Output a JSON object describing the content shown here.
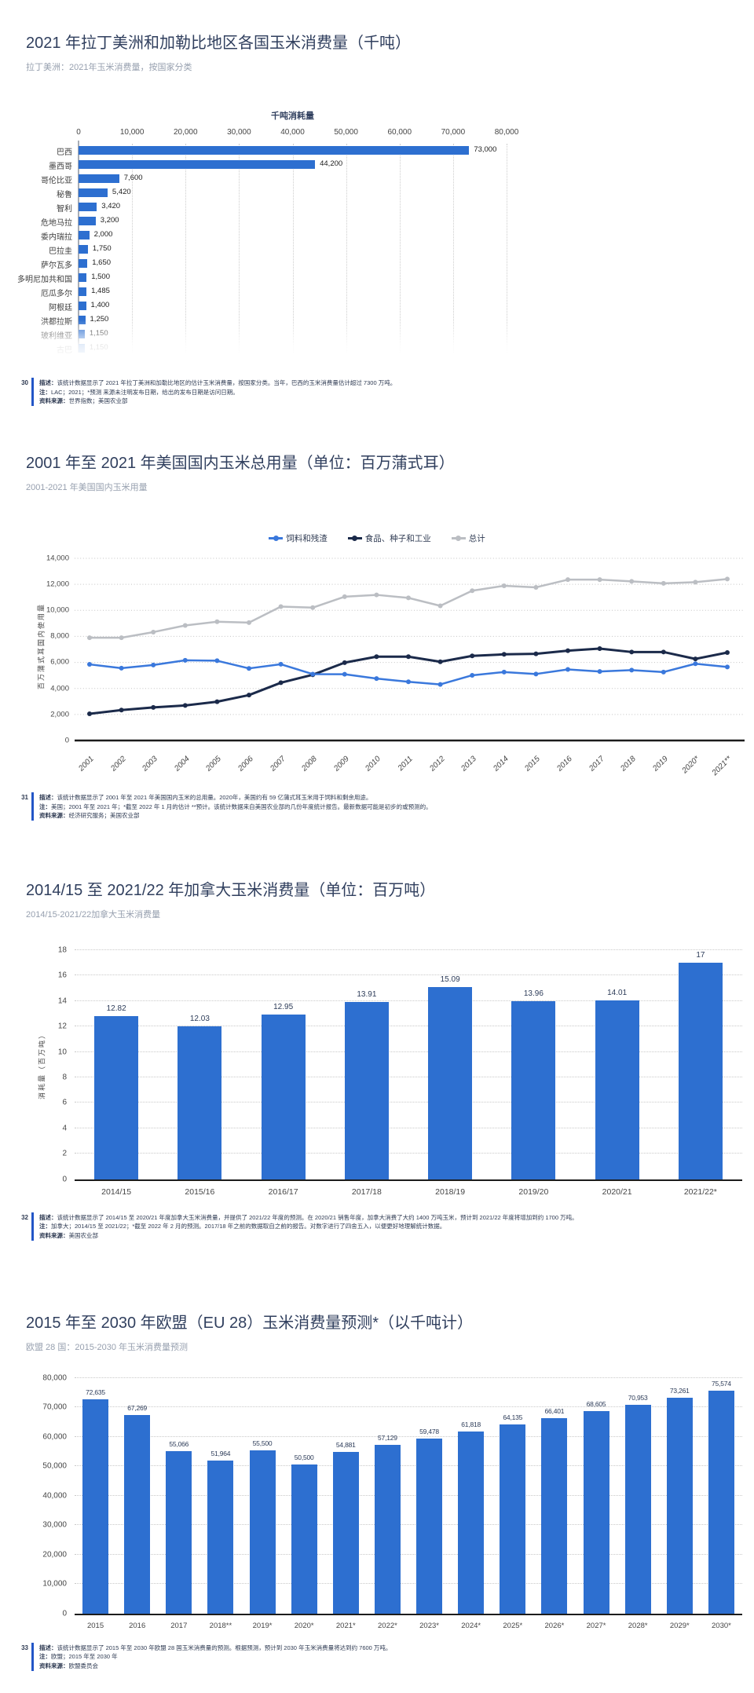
{
  "colors": {
    "bar_blue": "#2d6fd0",
    "title_navy": "#303f5e",
    "subtitle_gray": "#97a0af",
    "footnote_accent": "#2356c7",
    "line_blue": "#3a78dc",
    "line_dark": "#1b2a4a",
    "line_gray": "#bbbec3"
  },
  "chart_data": [
    {
      "id": "latam-corn-consumption-2021",
      "type": "bar-horizontal",
      "badge": "30",
      "title": "2021 年拉丁美洲和加勒比地区各国玉米消费量（千吨）",
      "subtitle": "拉丁美洲：2021年玉米消费量，按国家分类",
      "axis_title": "千吨消耗量",
      "xlim": [
        0,
        80000
      ],
      "xtick_labels": [
        "0",
        "10,000",
        "20,000",
        "30,000",
        "40,000",
        "50,000",
        "60,000",
        "70,000",
        "80,000"
      ],
      "categories": [
        "巴西",
        "墨西哥",
        "哥伦比亚",
        "秘鲁",
        "智利",
        "危地马拉",
        "委内瑞拉",
        "巴拉圭",
        "萨尔瓦多",
        "多明尼加共和国",
        "厄瓜多尔",
        "阿根廷",
        "洪都拉斯",
        "玻利维亚",
        "古巴"
      ],
      "values": [
        73000,
        44200,
        7600,
        5420,
        3420,
        3200,
        2000,
        1750,
        1650,
        1500,
        1485,
        1400,
        1250,
        1150,
        1150
      ],
      "value_labels": [
        "73,000",
        "44,200",
        "7,600",
        "5,420",
        "3,420",
        "3,200",
        "2,000",
        "1,750",
        "1,650",
        "1,500",
        "1,485",
        "1,400",
        "1,250",
        "1,150",
        "1,150"
      ],
      "footnote": {
        "desc_label": "描述：",
        "desc": "该统计数据显示了 2021 年拉丁美洲和加勒比地区的估计玉米消费量，按国家分类。当年，巴西的玉米消费量估计超过 7300 万吨。",
        "note_label": "注：",
        "note": "LAC；2021；*预测 来源未注明发布日期，给出的发布日期是访问日期。",
        "source_label": "资料来源：",
        "source": "世界指数；美国农业部"
      }
    },
    {
      "id": "us-domestic-corn-usage",
      "type": "line",
      "badge": "31",
      "title": "2001 年至 2021 年美国国内玉米总用量（单位：百万蒲式耳）",
      "subtitle": "2001-2021 年美国国内玉米用量",
      "ylabel": "百万蒲式耳国内使用量",
      "ylim": [
        0,
        14000
      ],
      "ytick_values": [
        0,
        2000,
        4000,
        6000,
        8000,
        10000,
        12000,
        14000
      ],
      "ytick_labels": [
        "0",
        "2,000",
        "4,000",
        "6,000",
        "8,000",
        "10,000",
        "12,000",
        "14,000"
      ],
      "x": [
        "2001",
        "2002",
        "2003",
        "2004",
        "2005",
        "2006",
        "2007",
        "2008",
        "2009",
        "2010",
        "2011",
        "2012",
        "2013",
        "2014",
        "2015",
        "2016",
        "2017",
        "2018",
        "2019",
        "2020*",
        "2021**"
      ],
      "series": [
        {
          "name": "饲料和残渣",
          "color": "#3a78dc",
          "values": [
            5850,
            5560,
            5800,
            6160,
            6130,
            5540,
            5860,
            5100,
            5090,
            4760,
            4510,
            4310,
            5010,
            5260,
            5110,
            5460,
            5300,
            5410,
            5260,
            5900,
            5650
          ]
        },
        {
          "name": "食品、种子和工业",
          "color": "#1b2a4a",
          "values": [
            2050,
            2340,
            2540,
            2690,
            2980,
            3490,
            4440,
            5050,
            5980,
            6440,
            6440,
            6050,
            6500,
            6620,
            6660,
            6900,
            7060,
            6800,
            6800,
            6270,
            6760
          ]
        },
        {
          "name": "总计",
          "color": "#bbbec3",
          "values": [
            7900,
            7900,
            8330,
            8840,
            9130,
            9060,
            10290,
            10210,
            11050,
            11190,
            10960,
            10350,
            11510,
            11890,
            11770,
            12360,
            12360,
            12230,
            12080,
            12170,
            12410
          ]
        }
      ],
      "legend_position": "top-center",
      "footnote": {
        "desc_label": "描述：",
        "desc": "该统计数据显示了 2001 年至 2021 年美国国内玉米的总用量。2020年，美国约有 59 亿蒲式耳玉米用于饲料和剩余用途。",
        "note_label": "注：",
        "note": "美国；2001 年至 2021 年；*截至 2022 年 1 月的估计 **预计。该统计数据来自美国农业部的几份年度统计报告。最新数据可能是初步的或预测的。",
        "source_label": "资料来源：",
        "source": "经济研究服务；美国农业部"
      }
    },
    {
      "id": "canada-corn-consumption",
      "type": "bar",
      "badge": "32",
      "title": "2014/15 至 2021/22 年加拿大玉米消费量（单位：百万吨）",
      "subtitle": "2014/15-2021/22加拿大玉米消费量",
      "ylabel": "消耗量（百万吨）",
      "ylim": [
        0,
        18
      ],
      "ytick_values": [
        0,
        2,
        4,
        6,
        8,
        10,
        12,
        14,
        16,
        18
      ],
      "ytick_labels": [
        "0",
        "2",
        "4",
        "6",
        "8",
        "10",
        "12",
        "14",
        "16",
        "18"
      ],
      "categories": [
        "2014/15",
        "2015/16",
        "2016/17",
        "2017/18",
        "2018/19",
        "2019/20",
        "2020/21",
        "2021/22*"
      ],
      "values": [
        12.82,
        12.03,
        12.95,
        13.91,
        15.09,
        13.96,
        14.01,
        17
      ],
      "value_labels": [
        "12.82",
        "12.03",
        "12.95",
        "13.91",
        "15.09",
        "13.96",
        "14.01",
        "17"
      ],
      "footnote": {
        "desc_label": "描述：",
        "desc": "该统计数据显示了 2014/15 至 2020/21 年度加拿大玉米消费量，并提供了 2021/22 年度的预测。在 2020/21 销售年度，加拿大消费了大约 1400 万吨玉米，预计到 2021/22 年度将增加到约 1700 万吨。",
        "note_label": "注：",
        "note": "加拿大；2014/15 至 2021/22；*截至 2022 年 2 月的预测。2017/18 年之前的数据取自之前的报告。对数字进行了四舍五入，以便更好地理解统计数据。",
        "source_label": "资料来源：",
        "source": "美国农业部"
      }
    },
    {
      "id": "eu28-corn-consumption-forecast",
      "type": "bar",
      "badge": "33",
      "title": "2015 年至 2030 年欧盟（EU 28）玉米消费量预测*（以千吨计）",
      "subtitle": "欧盟 28 国：2015-2030 年玉米消费量预测",
      "ylabel": "",
      "ylim": [
        0,
        80000
      ],
      "ytick_values": [
        0,
        10000,
        20000,
        30000,
        40000,
        50000,
        60000,
        70000,
        80000
      ],
      "ytick_labels": [
        "0",
        "10,000",
        "20,000",
        "30,000",
        "40,000",
        "50,000",
        "60,000",
        "70,000",
        "80,000"
      ],
      "categories": [
        "2015",
        "2016",
        "2017",
        "2018**",
        "2019*",
        "2020*",
        "2021*",
        "2022*",
        "2023*",
        "2024*",
        "2025*",
        "2026*",
        "2027*",
        "2028*",
        "2029*",
        "2030*"
      ],
      "values": [
        72635,
        67269,
        55066,
        51964,
        55500,
        50500,
        54881,
        57129,
        59478,
        61818,
        64135,
        66401,
        68605,
        70953,
        73261,
        75574
      ],
      "value_labels": [
        "72,635",
        "67,269",
        "55,066",
        "51,964",
        "55,500",
        "50,500",
        "54,881",
        "57,129",
        "59,478",
        "61,818",
        "64,135",
        "66,401",
        "68,605",
        "70,953",
        "73,261",
        "75,574"
      ],
      "footnote": {
        "desc_label": "描述：",
        "desc": "该统计数据显示了 2015 年至 2030 年欧盟 28 国玉米消费量的预测。根据预测，预计到 2030 年玉米消费量将达到约 7600 万吨。",
        "note_label": "注：",
        "note": "欧盟；2015 年至 2030 年",
        "source_label": "资料来源：",
        "source": "欧盟委员会"
      }
    }
  ]
}
